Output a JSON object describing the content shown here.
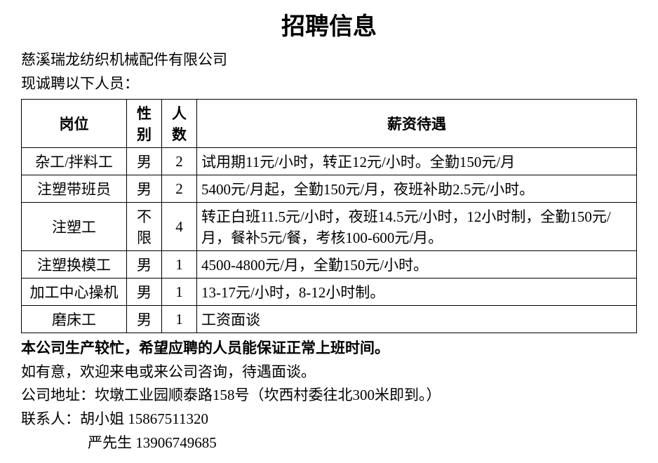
{
  "title": "招聘信息",
  "company": "慈溪瑞龙纺织机械配件有限公司",
  "subtitle": "现诚聘以下人员：",
  "table": {
    "headers": {
      "position": "岗位",
      "gender": "性别",
      "count": "人数",
      "salary": "薪资待遇"
    },
    "rows": [
      {
        "position": "杂工/拌料工",
        "gender": "男",
        "count": "2",
        "salary": "试用期11元/小时，转正12元/小时。全勤150元/月"
      },
      {
        "position": "注塑带班员",
        "gender": "男",
        "count": "2",
        "salary": "5400元/月起，全勤150元/月，夜班补助2.5元/小时。"
      },
      {
        "position": "注塑工",
        "gender": "不限",
        "count": "4",
        "salary": "转正白班11.5元/小时，夜班14.5元/小时，12小时制，全勤150元/月，餐补5元/餐，考核100-600元/月。"
      },
      {
        "position": "注塑换模工",
        "gender": "男",
        "count": "1",
        "salary": "4500-4800元/月，全勤150元/小时。"
      },
      {
        "position": "加工中心操机",
        "gender": "男",
        "count": "1",
        "salary": "13-17元/小时，8-12小时制。"
      },
      {
        "position": "磨床工",
        "gender": "男",
        "count": "1",
        "salary": "工资面谈"
      }
    ]
  },
  "note_bold": "本公司生产较忙，希望应聘的人员能保证正常上班时间。",
  "note_invite": "如有意，欢迎来电或来公司咨询，待遇面谈。",
  "address": "公司地址：坎墩工业园顺泰路158号（坎西村委往北300米即到。）",
  "contact1": "联系人：胡小姐  15867511320",
  "contact2": "严先生  13906749685",
  "styling": {
    "title_fontsize": 34,
    "body_fontsize": 21,
    "text_color": "#000000",
    "background_color": "#ffffff",
    "border_color": "#000000",
    "font_family": "SimSun"
  }
}
